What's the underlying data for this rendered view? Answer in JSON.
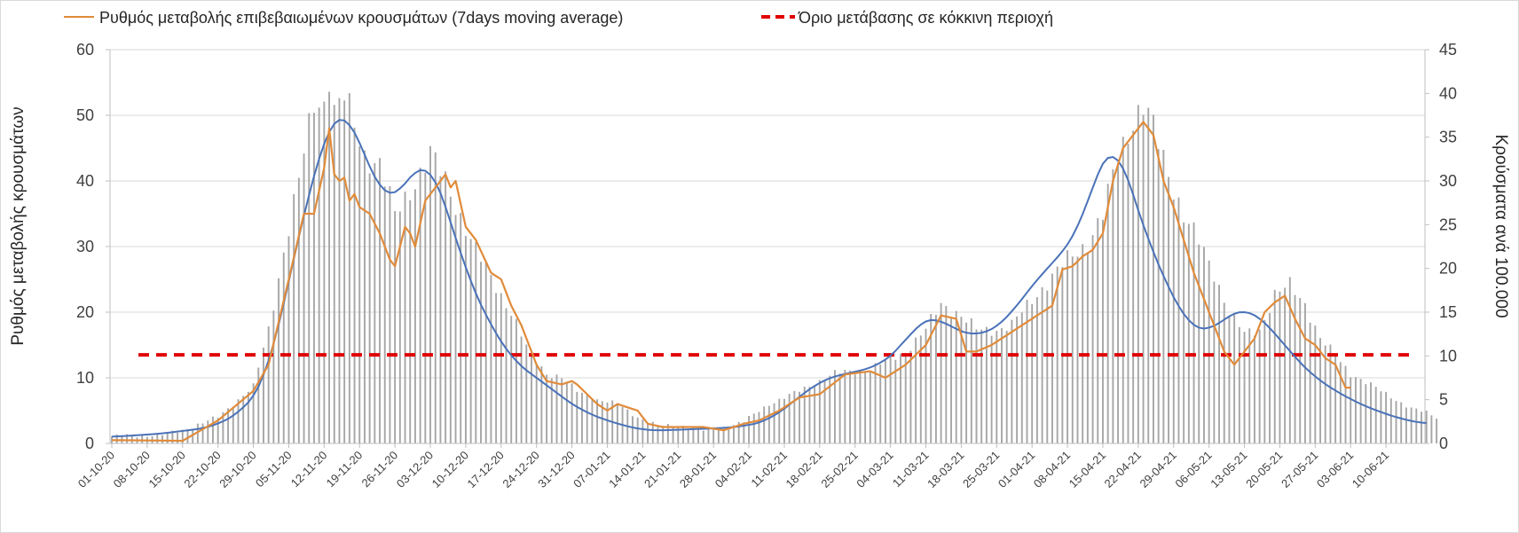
{
  "chart_data": {
    "type": "bar+line",
    "title": "",
    "ylabel": "Ρυθμός μεταβολής κρουσμάτων",
    "y2label": "Κρούσματα ανά 100.000",
    "ylim": [
      0,
      60
    ],
    "y2lim": [
      0,
      45
    ],
    "yticks": [
      "0",
      "10",
      "20",
      "30",
      "40",
      "50",
      "60"
    ],
    "y2ticks": [
      "0",
      "5",
      "10",
      "15",
      "20",
      "25",
      "30",
      "35",
      "40",
      "45"
    ],
    "grid": true,
    "legend_position": "top",
    "x_start": "2020-10-01",
    "x_end": "2021-06-16",
    "tick_labels": [
      "01-10-20",
      "08-10-20",
      "15-10-20",
      "22-10-20",
      "29-10-20",
      "05-11-20",
      "12-11-20",
      "19-11-20",
      "26-11-20",
      "03-12-20",
      "10-12-20",
      "17-12-20",
      "24-12-20",
      "31-12-20",
      "07-01-21",
      "14-01-21",
      "21-01-21",
      "28-01-21",
      "04-02-21",
      "11-02-21",
      "18-02-21",
      "25-02-21",
      "04-03-21",
      "11-03-21",
      "18-03-21",
      "25-03-21",
      "01-04-21",
      "08-04-21",
      "15-04-21",
      "22-04-21",
      "29-04-21",
      "06-05-21",
      "13-05-21",
      "20-05-21",
      "27-05-21",
      "03-06-21",
      "10-06-21"
    ],
    "legend": {
      "series1": "Ρυθμός μεταβολής επιβεβαιωμένων κρουσμάτων (7days moving average)",
      "threshold": "Όριο μετάβασης σε κόκκινη περιοχή"
    },
    "bars_anchor_days": [
      [
        0,
        0.8
      ],
      [
        10,
        1
      ],
      [
        14,
        1.5
      ],
      [
        21,
        3
      ],
      [
        28,
        6.5
      ],
      [
        31,
        13
      ],
      [
        34,
        22
      ],
      [
        37,
        30
      ],
      [
        40,
        39
      ],
      [
        42,
        39
      ],
      [
        43,
        42.5
      ],
      [
        44,
        38
      ],
      [
        46,
        39.5
      ],
      [
        50,
        33
      ],
      [
        53,
        32
      ],
      [
        56,
        26
      ],
      [
        60,
        30
      ],
      [
        63,
        33
      ],
      [
        66,
        30
      ],
      [
        69,
        26
      ],
      [
        72,
        22
      ],
      [
        75,
        19
      ],
      [
        79,
        15
      ],
      [
        82,
        11
      ],
      [
        86,
        8
      ],
      [
        89,
        7.5
      ],
      [
        92,
        6
      ],
      [
        96,
        5
      ],
      [
        100,
        4.5
      ],
      [
        104,
        3
      ],
      [
        108,
        2
      ],
      [
        113,
        2
      ],
      [
        117,
        1.5
      ],
      [
        121,
        1.8
      ],
      [
        125,
        2.5
      ],
      [
        130,
        4.5
      ],
      [
        136,
        6
      ],
      [
        143,
        8
      ],
      [
        150,
        8.5
      ],
      [
        157,
        10.5
      ],
      [
        161,
        13
      ],
      [
        164,
        16
      ],
      [
        167,
        15
      ],
      [
        171,
        13
      ],
      [
        175,
        13
      ],
      [
        178,
        13.5
      ],
      [
        182,
        16.5
      ],
      [
        186,
        19
      ],
      [
        189,
        21
      ],
      [
        193,
        23
      ],
      [
        196,
        26
      ],
      [
        199,
        33
      ],
      [
        202,
        37
      ],
      [
        204,
        38.5
      ],
      [
        206,
        36
      ],
      [
        209,
        31
      ],
      [
        212,
        26
      ],
      [
        215,
        23
      ],
      [
        218,
        19.5
      ],
      [
        221,
        15
      ],
      [
        224,
        12.5
      ],
      [
        227,
        13
      ],
      [
        230,
        17
      ],
      [
        233,
        18
      ],
      [
        236,
        16
      ],
      [
        239,
        12
      ],
      [
        242,
        10
      ],
      [
        245,
        8
      ],
      [
        248,
        7
      ],
      [
        251,
        6
      ],
      [
        254,
        5
      ],
      [
        257,
        4
      ],
      [
        260,
        3.5
      ],
      [
        262,
        3
      ]
    ],
    "moving_avg_anchor_days": [
      [
        0,
        0.5
      ],
      [
        14,
        0.4
      ],
      [
        21,
        3.5
      ],
      [
        28,
        8
      ],
      [
        31,
        12
      ],
      [
        35,
        25
      ],
      [
        38,
        35
      ],
      [
        40,
        35
      ],
      [
        42,
        42
      ],
      [
        43,
        48
      ],
      [
        44,
        41
      ],
      [
        45,
        40
      ],
      [
        46,
        40.5
      ],
      [
        47,
        37
      ],
      [
        48,
        38
      ],
      [
        49,
        36
      ],
      [
        51,
        35
      ],
      [
        53,
        32
      ],
      [
        55,
        28
      ],
      [
        56,
        27
      ],
      [
        58,
        33
      ],
      [
        59,
        32
      ],
      [
        60,
        30
      ],
      [
        62,
        37
      ],
      [
        64,
        39
      ],
      [
        66,
        41
      ],
      [
        67,
        39
      ],
      [
        68,
        40
      ],
      [
        70,
        33
      ],
      [
        72,
        31
      ],
      [
        75,
        26
      ],
      [
        77,
        25
      ],
      [
        79,
        21
      ],
      [
        81,
        18
      ],
      [
        84,
        12
      ],
      [
        86,
        9.5
      ],
      [
        89,
        9
      ],
      [
        91,
        9.5
      ],
      [
        92,
        9
      ],
      [
        94,
        7.5
      ],
      [
        96,
        6
      ],
      [
        98,
        5
      ],
      [
        100,
        6
      ],
      [
        104,
        5
      ],
      [
        106,
        3
      ],
      [
        109,
        2.5
      ],
      [
        113,
        2.5
      ],
      [
        117,
        2.5
      ],
      [
        121,
        2
      ],
      [
        125,
        3
      ],
      [
        128,
        3.5
      ],
      [
        132,
        5
      ],
      [
        136,
        7
      ],
      [
        140,
        7.5
      ],
      [
        145,
        10.5
      ],
      [
        150,
        11
      ],
      [
        153,
        10
      ],
      [
        157,
        12
      ],
      [
        161,
        15
      ],
      [
        164,
        19.5
      ],
      [
        167,
        19
      ],
      [
        169,
        14
      ],
      [
        171,
        14
      ],
      [
        174,
        15
      ],
      [
        178,
        17
      ],
      [
        182,
        19
      ],
      [
        186,
        21
      ],
      [
        188,
        26.5
      ],
      [
        190,
        27
      ],
      [
        192,
        28.5
      ],
      [
        194,
        29.5
      ],
      [
        196,
        32
      ],
      [
        198,
        40
      ],
      [
        200,
        45
      ],
      [
        202,
        47
      ],
      [
        204,
        49
      ],
      [
        206,
        47
      ],
      [
        208,
        40
      ],
      [
        210,
        36
      ],
      [
        212,
        31
      ],
      [
        214,
        26
      ],
      [
        216,
        22
      ],
      [
        218,
        18
      ],
      [
        220,
        14
      ],
      [
        222,
        12
      ],
      [
        224,
        14
      ],
      [
        226,
        16
      ],
      [
        228,
        20
      ],
      [
        230,
        21.5
      ],
      [
        232,
        22.5
      ],
      [
        234,
        19
      ],
      [
        236,
        16
      ],
      [
        238,
        15
      ],
      [
        240,
        13
      ],
      [
        242,
        12
      ],
      [
        244,
        8.5
      ],
      [
        245,
        8.5
      ]
    ],
    "smooth_anchor_days": [
      [
        0,
        1
      ],
      [
        10,
        1.5
      ],
      [
        20,
        2.5
      ],
      [
        26,
        5
      ],
      [
        30,
        9
      ],
      [
        32,
        14
      ],
      [
        35,
        25
      ],
      [
        38,
        35
      ],
      [
        41,
        44
      ],
      [
        43,
        49
      ],
      [
        45,
        51
      ],
      [
        47,
        50
      ],
      [
        50,
        44
      ],
      [
        53,
        38
      ],
      [
        55,
        37
      ],
      [
        57,
        38
      ],
      [
        60,
        42
      ],
      [
        62,
        43.5
      ],
      [
        64,
        41
      ],
      [
        67,
        34
      ],
      [
        70,
        26
      ],
      [
        73,
        21
      ],
      [
        76,
        16.5
      ],
      [
        79,
        13
      ],
      [
        82,
        11
      ],
      [
        86,
        9
      ],
      [
        89,
        7
      ],
      [
        93,
        5
      ],
      [
        97,
        3.7
      ],
      [
        101,
        2.8
      ],
      [
        105,
        2
      ],
      [
        110,
        2
      ],
      [
        115,
        2.2
      ],
      [
        120,
        2.3
      ],
      [
        125,
        2.6
      ],
      [
        130,
        3.5
      ],
      [
        135,
        6.5
      ],
      [
        140,
        9.5
      ],
      [
        144,
        10.5
      ],
      [
        148,
        11
      ],
      [
        152,
        12
      ],
      [
        156,
        14.5
      ],
      [
        159,
        18
      ],
      [
        162,
        19.5
      ],
      [
        164,
        19
      ],
      [
        167,
        17
      ],
      [
        171,
        16.5
      ],
      [
        174,
        17
      ],
      [
        177,
        19
      ],
      [
        180,
        22
      ],
      [
        184,
        26
      ],
      [
        188,
        29
      ],
      [
        190,
        31
      ],
      [
        192,
        34
      ],
      [
        194,
        39
      ],
      [
        196,
        44
      ],
      [
        198,
        46.5
      ],
      [
        199,
        45.5
      ],
      [
        201,
        40
      ],
      [
        204,
        33
      ],
      [
        207,
        27
      ],
      [
        210,
        22
      ],
      [
        213,
        18
      ],
      [
        215,
        17
      ],
      [
        217,
        17
      ],
      [
        220,
        19
      ],
      [
        223,
        20.5
      ],
      [
        225,
        20.5
      ],
      [
        228,
        18.5
      ],
      [
        231,
        16
      ],
      [
        234,
        13
      ],
      [
        238,
        10
      ],
      [
        242,
        8
      ],
      [
        246,
        6.3
      ],
      [
        250,
        5
      ],
      [
        256,
        3.5
      ],
      [
        260,
        3
      ]
    ],
    "threshold_value": 13.5,
    "colors": {
      "bars": "#a6a6a6",
      "moving_avg": "#e08b3a",
      "smooth": "#4a72b8",
      "threshold": "#e00000",
      "grid": "#d9d9d9",
      "axis": "#bfbfbf"
    }
  }
}
